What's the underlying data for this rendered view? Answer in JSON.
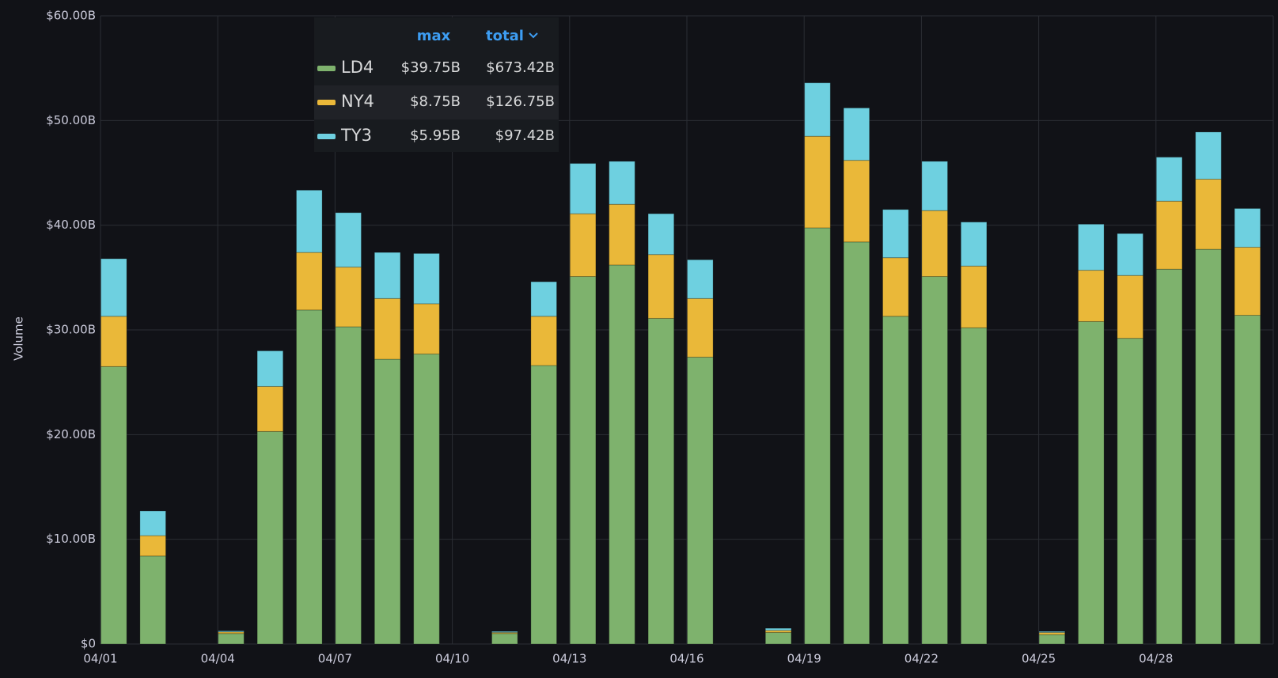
{
  "chart_data": {
    "type": "stacked_bar",
    "y_axis_label": "Volume",
    "categories": [
      "04/01",
      null,
      null,
      "04/04",
      null,
      null,
      "04/07",
      null,
      null,
      "04/10",
      null,
      null,
      "04/13",
      null,
      null,
      "04/16",
      null,
      null,
      "04/19",
      null,
      null,
      "04/22",
      null,
      null,
      "04/25",
      null,
      null,
      "04/28",
      null,
      null
    ],
    "ylim": [
      0,
      60
    ],
    "yticks": [
      {
        "value": 0,
        "label": "$0"
      },
      {
        "value": 10,
        "label": "$10.00B"
      },
      {
        "value": 20,
        "label": "$20.00B"
      },
      {
        "value": 30,
        "label": "$30.00B"
      },
      {
        "value": 40,
        "label": "$40.00B"
      },
      {
        "value": 50,
        "label": "$50.00B"
      },
      {
        "value": 60,
        "label": "$60.00B"
      }
    ],
    "grid": true,
    "legend_columns": [
      "max",
      "total"
    ],
    "series": [
      {
        "name": "LD4",
        "color": "#7eb26d",
        "max": {
          "value": 39.75,
          "label": "$39.75B"
        },
        "total": {
          "value": 673.42,
          "label": "$673.42B"
        },
        "values": [
          26.5,
          8.4,
          null,
          1.0,
          20.3,
          31.9,
          30.3,
          27.2,
          27.7,
          null,
          1.0,
          26.6,
          35.1,
          36.2,
          31.1,
          27.4,
          null,
          1.1,
          39.75,
          38.4,
          31.3,
          35.1,
          30.2,
          null,
          0.9,
          30.8,
          29.2,
          35.8,
          37.7,
          31.4
        ]
      },
      {
        "name": "NY4",
        "color": "#eab839",
        "max": {
          "value": 8.75,
          "label": "$8.75B"
        },
        "total": {
          "value": 126.75,
          "label": "$126.75B"
        },
        "values": [
          4.8,
          1.95,
          null,
          0.15,
          4.3,
          5.5,
          5.7,
          5.8,
          4.8,
          null,
          0.1,
          4.7,
          6.0,
          5.8,
          6.1,
          5.6,
          null,
          0.2,
          8.75,
          7.8,
          5.6,
          6.3,
          5.9,
          null,
          0.2,
          4.9,
          6.0,
          6.5,
          6.7,
          6.5
        ]
      },
      {
        "name": "TY3",
        "color": "#6ed0e0",
        "max": {
          "value": 5.95,
          "label": "$5.95B"
        },
        "total": {
          "value": 97.42,
          "label": "$97.42B"
        },
        "values": [
          5.5,
          2.35,
          null,
          0.1,
          3.4,
          5.95,
          5.2,
          4.4,
          4.8,
          null,
          0.1,
          3.3,
          4.8,
          4.1,
          3.9,
          3.7,
          null,
          0.2,
          5.1,
          5.0,
          4.6,
          4.7,
          4.2,
          null,
          0.1,
          4.4,
          4.0,
          4.2,
          4.5,
          3.7
        ]
      }
    ]
  }
}
